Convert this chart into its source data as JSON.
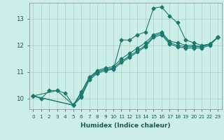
{
  "title": "",
  "xlabel": "Humidex (Indice chaleur)",
  "ylabel": "",
  "bg_color": "#cceee8",
  "grid_color": "#b0ccc8",
  "line_color": "#1a7a6e",
  "xlim": [
    -0.5,
    23.5
  ],
  "ylim": [
    9.6,
    13.6
  ],
  "xticks": [
    0,
    1,
    2,
    3,
    4,
    5,
    6,
    7,
    8,
    9,
    10,
    11,
    12,
    13,
    14,
    15,
    16,
    17,
    18,
    19,
    20,
    21,
    22,
    23
  ],
  "yticks": [
    10,
    11,
    12,
    13
  ],
  "series1_x": [
    0,
    1,
    2,
    3,
    4,
    5,
    6,
    7,
    8,
    9,
    10,
    11,
    12,
    13,
    14,
    15,
    16,
    17,
    18,
    19,
    20,
    21,
    22,
    23
  ],
  "series1_y": [
    10.1,
    10.0,
    10.3,
    10.3,
    10.2,
    9.75,
    10.25,
    10.8,
    11.0,
    11.1,
    11.1,
    12.2,
    12.2,
    12.4,
    12.5,
    13.4,
    13.45,
    13.1,
    12.85,
    12.2,
    12.1,
    12.0,
    12.05,
    12.3
  ],
  "series2_x": [
    0,
    3,
    5,
    6,
    7,
    8,
    9,
    10,
    11,
    12,
    13,
    14,
    15,
    16,
    17,
    18,
    19,
    20,
    21,
    22,
    23
  ],
  "series2_y": [
    10.1,
    10.3,
    9.75,
    10.2,
    10.8,
    11.05,
    11.15,
    11.2,
    11.5,
    11.7,
    11.9,
    12.1,
    12.4,
    12.5,
    12.15,
    12.1,
    12.0,
    12.0,
    11.95,
    12.05,
    12.3
  ],
  "series3_x": [
    0,
    5,
    6,
    7,
    8,
    9,
    10,
    11,
    12,
    13,
    14,
    15,
    16,
    17,
    18,
    19,
    20,
    21,
    22,
    23
  ],
  "series3_y": [
    10.1,
    9.75,
    10.1,
    10.75,
    11.0,
    11.1,
    11.15,
    11.4,
    11.6,
    11.8,
    12.0,
    12.35,
    12.45,
    12.1,
    12.0,
    11.95,
    11.95,
    11.95,
    12.05,
    12.3
  ],
  "series4_x": [
    0,
    5,
    6,
    7,
    8,
    9,
    10,
    11,
    12,
    13,
    14,
    15,
    16,
    17,
    18,
    19,
    20,
    21,
    22,
    23
  ],
  "series4_y": [
    10.1,
    9.75,
    10.05,
    10.7,
    10.95,
    11.05,
    11.1,
    11.35,
    11.55,
    11.75,
    11.95,
    12.3,
    12.4,
    12.05,
    11.95,
    11.9,
    11.9,
    11.9,
    12.0,
    12.3
  ],
  "marker": "D",
  "markersize": 2.5,
  "linewidth": 0.8,
  "xlabel_fontsize": 6.5,
  "tick_fontsize": 5.2
}
